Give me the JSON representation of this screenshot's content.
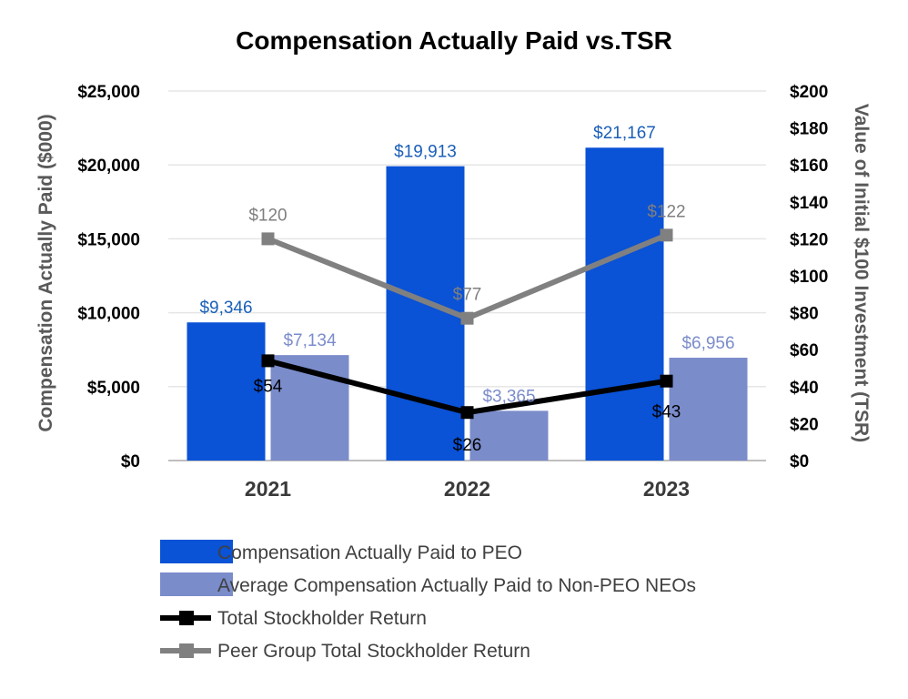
{
  "chart_data": {
    "type": "bar",
    "title": "Compensation Actually Paid vs.TSR",
    "categories": [
      "2021",
      "2022",
      "2023"
    ],
    "ylabel": "Compensation Actually Paid ($000)",
    "y2label": "Value of Initial $100 Investment (TSR)",
    "ylim": [
      0,
      25000
    ],
    "y2lim": [
      0,
      200
    ],
    "yticks": [
      "$0",
      "$5,000",
      "$10,000",
      "$15,000",
      "$20,000",
      "$25,000"
    ],
    "y2ticks": [
      "$0",
      "$20",
      "$40",
      "$60",
      "$80",
      "$100",
      "$120",
      "$140",
      "$160",
      "$180",
      "$200"
    ],
    "grid": true,
    "bar_series": [
      {
        "name": "Compensation Actually Paid to PEO",
        "values": [
          9346,
          19913,
          21167
        ],
        "labels": [
          "$9,346",
          "$19,913",
          "$21,167"
        ],
        "color": "#0a52d6",
        "label_color": "#1b5fb8"
      },
      {
        "name": "Average Compensation Actually Paid to Non-PEO NEOs",
        "values": [
          7134,
          3365,
          6956
        ],
        "labels": [
          "$7,134",
          "$3,365",
          "$6,956"
        ],
        "color": "#7b8ccb",
        "label_color": "#7b8ccb"
      }
    ],
    "line_series": [
      {
        "name": "Total Stockholder Return",
        "values": [
          54,
          26,
          43
        ],
        "labels": [
          "$54",
          "$26",
          "$43"
        ],
        "axis": "right",
        "color": "#000000",
        "label_color": "#000000"
      },
      {
        "name": "Peer Group Total Stockholder Return",
        "values": [
          120,
          77,
          122
        ],
        "labels": [
          "$120",
          "$77",
          "$122"
        ],
        "axis": "right",
        "color": "#808080",
        "label_color": "#7f7f7f"
      }
    ],
    "legend_position": "bottom"
  }
}
